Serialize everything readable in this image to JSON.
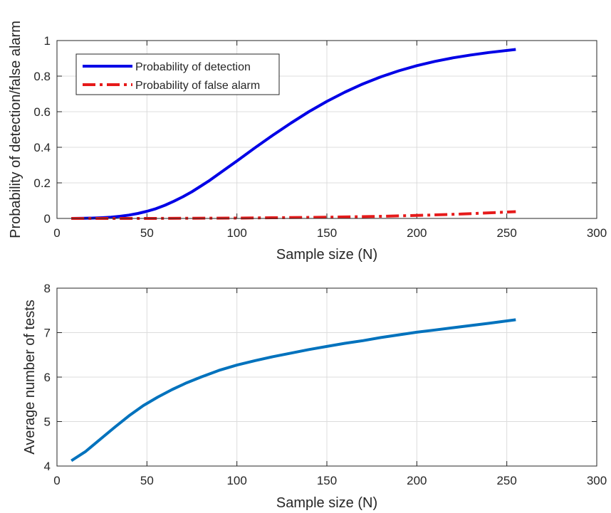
{
  "chart_data": [
    {
      "type": "line",
      "xlabel": "Sample size (N)",
      "ylabel": "Probability of detection/false alarm",
      "xlim": [
        0,
        300
      ],
      "ylim": [
        0,
        1
      ],
      "x_ticks": [
        0,
        50,
        100,
        150,
        200,
        250,
        300
      ],
      "y_ticks": [
        0,
        0.2,
        0.4,
        0.6,
        0.8,
        1
      ],
      "x_tick_labels": [
        "0",
        "50",
        "100",
        "150",
        "200",
        "250",
        "300"
      ],
      "y_tick_labels": [
        "0",
        "0.2",
        "0.4",
        "0.6",
        "0.8",
        "1"
      ],
      "grid": true,
      "legend_position": "top-left",
      "series": [
        {
          "name": "Probability of detection",
          "color": "#0000e6",
          "style": "solid",
          "points": [
            [
              8,
              0.0
            ],
            [
              15,
              0.001
            ],
            [
              20,
              0.002
            ],
            [
              25,
              0.004
            ],
            [
              30,
              0.007
            ],
            [
              35,
              0.012
            ],
            [
              40,
              0.019
            ],
            [
              45,
              0.028
            ],
            [
              50,
              0.04
            ],
            [
              55,
              0.055
            ],
            [
              60,
              0.074
            ],
            [
              65,
              0.097
            ],
            [
              70,
              0.122
            ],
            [
              75,
              0.15
            ],
            [
              80,
              0.182
            ],
            [
              85,
              0.215
            ],
            [
              90,
              0.251
            ],
            [
              95,
              0.287
            ],
            [
              100,
              0.323
            ],
            [
              110,
              0.397
            ],
            [
              120,
              0.468
            ],
            [
              130,
              0.536
            ],
            [
              140,
              0.6
            ],
            [
              150,
              0.658
            ],
            [
              160,
              0.71
            ],
            [
              170,
              0.756
            ],
            [
              180,
              0.796
            ],
            [
              190,
              0.83
            ],
            [
              200,
              0.859
            ],
            [
              210,
              0.883
            ],
            [
              220,
              0.903
            ],
            [
              230,
              0.919
            ],
            [
              240,
              0.933
            ],
            [
              255,
              0.95
            ]
          ]
        },
        {
          "name": "Probability of false alarm",
          "color": "#e61a1a",
          "style": "dashdot",
          "points": [
            [
              8,
              0.0
            ],
            [
              50,
              0.0
            ],
            [
              100,
              0.002
            ],
            [
              150,
              0.007
            ],
            [
              175,
              0.011
            ],
            [
              200,
              0.017
            ],
            [
              225,
              0.025
            ],
            [
              255,
              0.038
            ]
          ]
        }
      ]
    },
    {
      "type": "line",
      "xlabel": "Sample size (N)",
      "ylabel": "Average number of tests",
      "xlim": [
        0,
        300
      ],
      "ylim": [
        4,
        8
      ],
      "x_ticks": [
        0,
        50,
        100,
        150,
        200,
        250,
        300
      ],
      "y_ticks": [
        4,
        5,
        6,
        7,
        8
      ],
      "x_tick_labels": [
        "0",
        "50",
        "100",
        "150",
        "200",
        "250",
        "300"
      ],
      "y_tick_labels": [
        "4",
        "5",
        "6",
        "7",
        "8"
      ],
      "grid": true,
      "series": [
        {
          "color": "#0072bd",
          "style": "solid",
          "points": [
            [
              8,
              4.12
            ],
            [
              16,
              4.33
            ],
            [
              24,
              4.6
            ],
            [
              32,
              4.87
            ],
            [
              40,
              5.13
            ],
            [
              48,
              5.36
            ],
            [
              56,
              5.55
            ],
            [
              64,
              5.72
            ],
            [
              72,
              5.87
            ],
            [
              80,
              6.0
            ],
            [
              90,
              6.15
            ],
            [
              100,
              6.27
            ],
            [
              110,
              6.37
            ],
            [
              120,
              6.46
            ],
            [
              130,
              6.54
            ],
            [
              140,
              6.62
            ],
            [
              150,
              6.69
            ],
            [
              160,
              6.76
            ],
            [
              170,
              6.82
            ],
            [
              180,
              6.89
            ],
            [
              190,
              6.95
            ],
            [
              200,
              7.01
            ],
            [
              210,
              7.06
            ],
            [
              220,
              7.11
            ],
            [
              230,
              7.16
            ],
            [
              240,
              7.21
            ],
            [
              255,
              7.29
            ]
          ]
        }
      ]
    }
  ]
}
